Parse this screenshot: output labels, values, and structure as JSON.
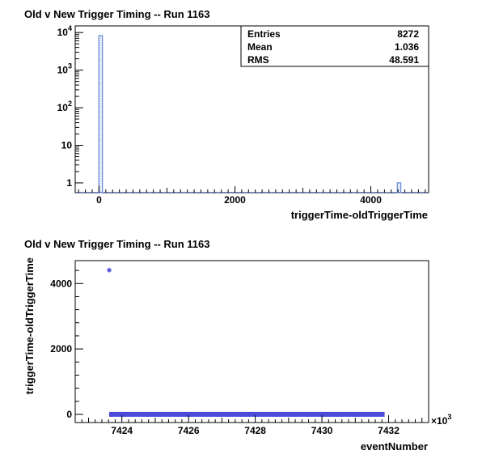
{
  "chart_data": [
    {
      "type": "bar",
      "title": "Old v New Trigger Timing -- Run 1163",
      "xlabel": "triggerTime-oldTriggerTime",
      "ylabel": "",
      "xlim": [
        -350,
        4850
      ],
      "ylog": true,
      "ylim": [
        0.55,
        15000
      ],
      "x_ticks": [
        "0",
        "2000",
        "4000"
      ],
      "y_ticks": [
        {
          "base": "10",
          "exp": "4",
          "value": 10000
        },
        {
          "base": "10",
          "exp": "3",
          "value": 1000
        },
        {
          "base": "10",
          "exp": "2",
          "value": 100
        },
        {
          "base": "10",
          "exp": "",
          "value": 10
        },
        {
          "base": "1",
          "exp": "",
          "value": 1
        }
      ],
      "bins": [
        {
          "x_low": -1,
          "x_high": 50,
          "count": 8271
        },
        {
          "x_low": 4390,
          "x_high": 4440,
          "count": 1
        }
      ],
      "bar_color": "#6f8fd9",
      "stats": [
        {
          "label": "Entries",
          "value": "8272"
        },
        {
          "label": "Mean",
          "value": "1.036"
        },
        {
          "label": "RMS",
          "value": "48.591"
        }
      ]
    },
    {
      "type": "scatter",
      "title": "Old v New Trigger Timing -- Run 1163",
      "xlabel": "eventNumber",
      "ylabel": "triggerTime-oldTriggerTime",
      "x_multiplier": "×10",
      "x_multiplier_exp": "3",
      "xlim": [
        7422.6,
        7433.2
      ],
      "ylim": [
        -250,
        4700
      ],
      "x_ticks": [
        "7424",
        "7426",
        "7428",
        "7430",
        "7432"
      ],
      "y_ticks": [
        "0",
        "2000",
        "4000"
      ],
      "marker_color": "#4b4bd9",
      "points": [
        {
          "x": 7423.62,
          "y": 4410
        },
        {
          "x": 7423.68,
          "y": 0
        }
      ],
      "band": {
        "x_start": 7423.62,
        "x_end": 7431.88,
        "y": 0
      }
    }
  ]
}
